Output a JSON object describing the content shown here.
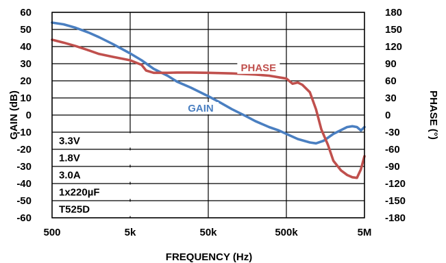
{
  "chart_data": {
    "type": "line",
    "xlabel": "FREQUENCY (Hz)",
    "ylabel_left": "GAIN (dB)",
    "ylabel_right": "PHASE (°)",
    "x_scale": "log",
    "xlim": [
      500,
      5000000
    ],
    "x_ticks": [
      500,
      5000,
      50000,
      500000,
      5000000
    ],
    "x_tick_labels": [
      "500",
      "5k",
      "50k",
      "500k",
      "5M"
    ],
    "ylim_left": [
      -60,
      60
    ],
    "y_ticks_left": [
      -60,
      -50,
      -40,
      -30,
      -20,
      -10,
      0,
      10,
      20,
      30,
      40,
      50,
      60
    ],
    "y_tick_labels_left": [
      "-60",
      "-50",
      "-40",
      "-30",
      "-20",
      "-10",
      "0",
      "10",
      "20",
      "30",
      "40",
      "50",
      "60"
    ],
    "ylim_right": [
      -180,
      180
    ],
    "y_ticks_right": [
      -180,
      -150,
      -120,
      -90,
      -60,
      -30,
      0,
      30,
      60,
      90,
      120,
      150,
      180
    ],
    "y_tick_labels_right": [
      "-180",
      "-150",
      "-120",
      "-90",
      "-60",
      "-30",
      "0",
      "30",
      "60",
      "90",
      "120",
      "150",
      "180"
    ],
    "grid": true,
    "conditions": [
      "3.3V",
      "1.8V",
      "3.0A",
      "1x220µF",
      "T525D"
    ],
    "series": [
      {
        "name": "GAIN",
        "axis": "left",
        "color": "#4a7fc1",
        "label_at": {
          "x": 40000,
          "y": 4
        },
        "points": [
          [
            500,
            54
          ],
          [
            700,
            53
          ],
          [
            1000,
            51
          ],
          [
            1500,
            48
          ],
          [
            2000,
            45.5
          ],
          [
            3000,
            41.5
          ],
          [
            5000,
            36
          ],
          [
            7000,
            32
          ],
          [
            10000,
            27
          ],
          [
            15000,
            23
          ],
          [
            20000,
            19.5
          ],
          [
            30000,
            16
          ],
          [
            50000,
            11
          ],
          [
            70000,
            7.5
          ],
          [
            100000,
            3.5
          ],
          [
            150000,
            -0.5
          ],
          [
            200000,
            -3.5
          ],
          [
            300000,
            -7
          ],
          [
            400000,
            -9
          ],
          [
            500000,
            -11
          ],
          [
            700000,
            -14
          ],
          [
            1000000,
            -16
          ],
          [
            1200000,
            -16.5
          ],
          [
            1500000,
            -15
          ],
          [
            2000000,
            -11
          ],
          [
            3000000,
            -7
          ],
          [
            3500000,
            -6.5
          ],
          [
            4000000,
            -7
          ],
          [
            4500000,
            -9
          ],
          [
            5000000,
            -7
          ]
        ]
      },
      {
        "name": "PHASE",
        "axis": "right",
        "color": "#c0504d",
        "label_at": {
          "x": 220000,
          "y": 83
        },
        "points": [
          [
            500,
            132
          ],
          [
            700,
            127
          ],
          [
            1000,
            121
          ],
          [
            1500,
            113
          ],
          [
            2000,
            107
          ],
          [
            3000,
            102
          ],
          [
            5000,
            96
          ],
          [
            7000,
            88
          ],
          [
            8000,
            78
          ],
          [
            10000,
            74
          ],
          [
            15000,
            74
          ],
          [
            20000,
            74.5
          ],
          [
            30000,
            74.5
          ],
          [
            50000,
            74
          ],
          [
            100000,
            73
          ],
          [
            200000,
            71
          ],
          [
            300000,
            69
          ],
          [
            500000,
            64
          ],
          [
            600000,
            55
          ],
          [
            700000,
            57
          ],
          [
            800000,
            53
          ],
          [
            1000000,
            40
          ],
          [
            1200000,
            10
          ],
          [
            1400000,
            -25
          ],
          [
            1700000,
            -52
          ],
          [
            2000000,
            -80
          ],
          [
            2500000,
            -97
          ],
          [
            3000000,
            -105
          ],
          [
            3500000,
            -109
          ],
          [
            4000000,
            -110
          ],
          [
            4500000,
            -95
          ],
          [
            5000000,
            -72
          ]
        ]
      }
    ]
  }
}
